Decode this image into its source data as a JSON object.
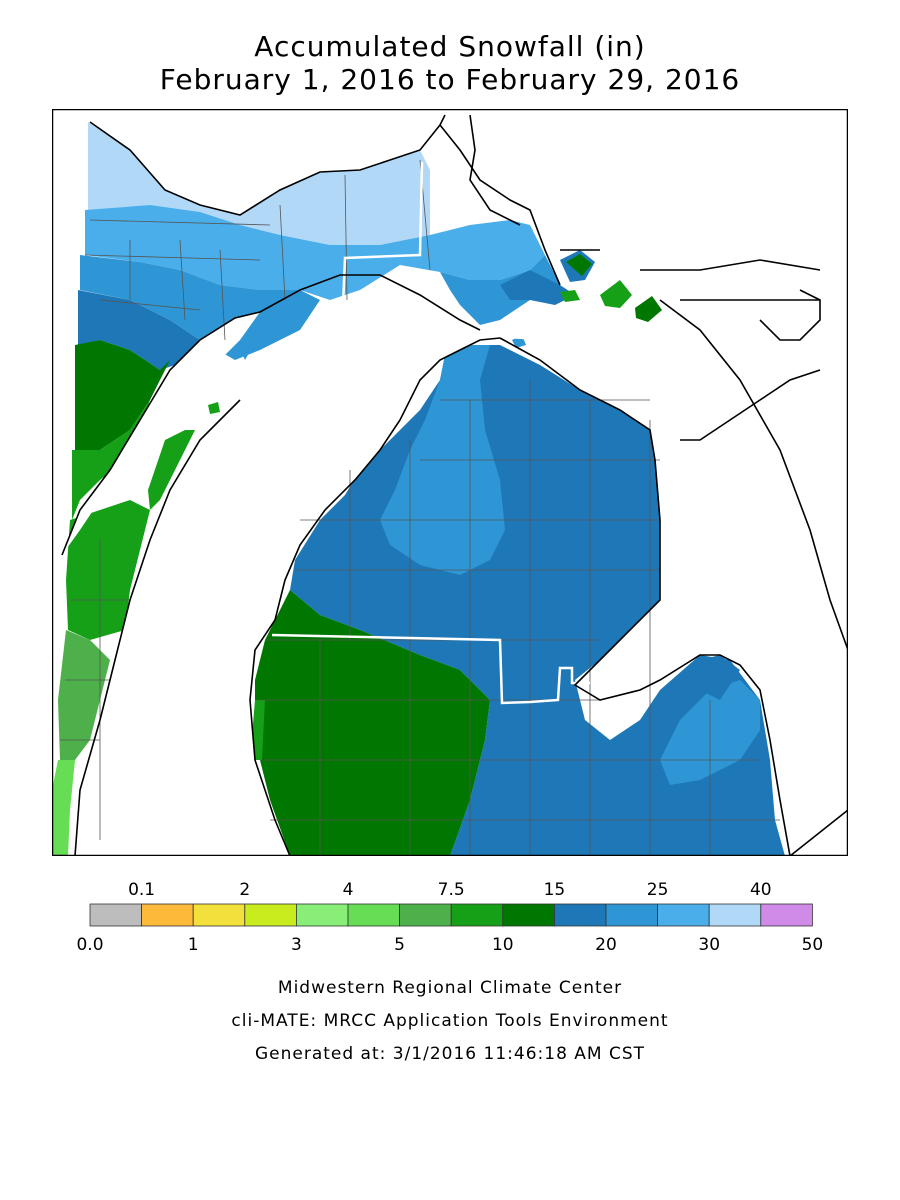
{
  "title": {
    "line1": "Accumulated Snowfall (in)",
    "line2": "February 1, 2016 to February 29, 2016"
  },
  "legend": {
    "top_labels": [
      "0.1",
      "2",
      "4",
      "7.5",
      "15",
      "25",
      "40"
    ],
    "bottom_labels": [
      "0.0",
      "1",
      "3",
      "5",
      "10",
      "20",
      "30",
      "50"
    ],
    "colors": [
      "#bdbdbd",
      "#fdb93a",
      "#f4e03c",
      "#c8ec1e",
      "#88ee77",
      "#66dd55",
      "#4db04a",
      "#15a018",
      "#007700",
      "#1e78b8",
      "#2f96d6",
      "#4aaeea",
      "#b2d8f8",
      "#d08ae8"
    ]
  },
  "map": {
    "region": "Michigan",
    "zone_colors": {
      "light_blue": "#b2d8f8",
      "blue_30": "#4aaeea",
      "blue_25": "#2f96d6",
      "blue_20": "#1e78b8",
      "green_15": "#007700",
      "green_10": "#15a018",
      "green_7": "#4db04a",
      "green_5": "#66dd55"
    }
  },
  "footer": {
    "line1": "Midwestern Regional Climate Center",
    "line2": "cli-MATE: MRCC Application Tools Environment",
    "line3": "Generated at: 3/1/2016 11:46:18 AM CST"
  }
}
